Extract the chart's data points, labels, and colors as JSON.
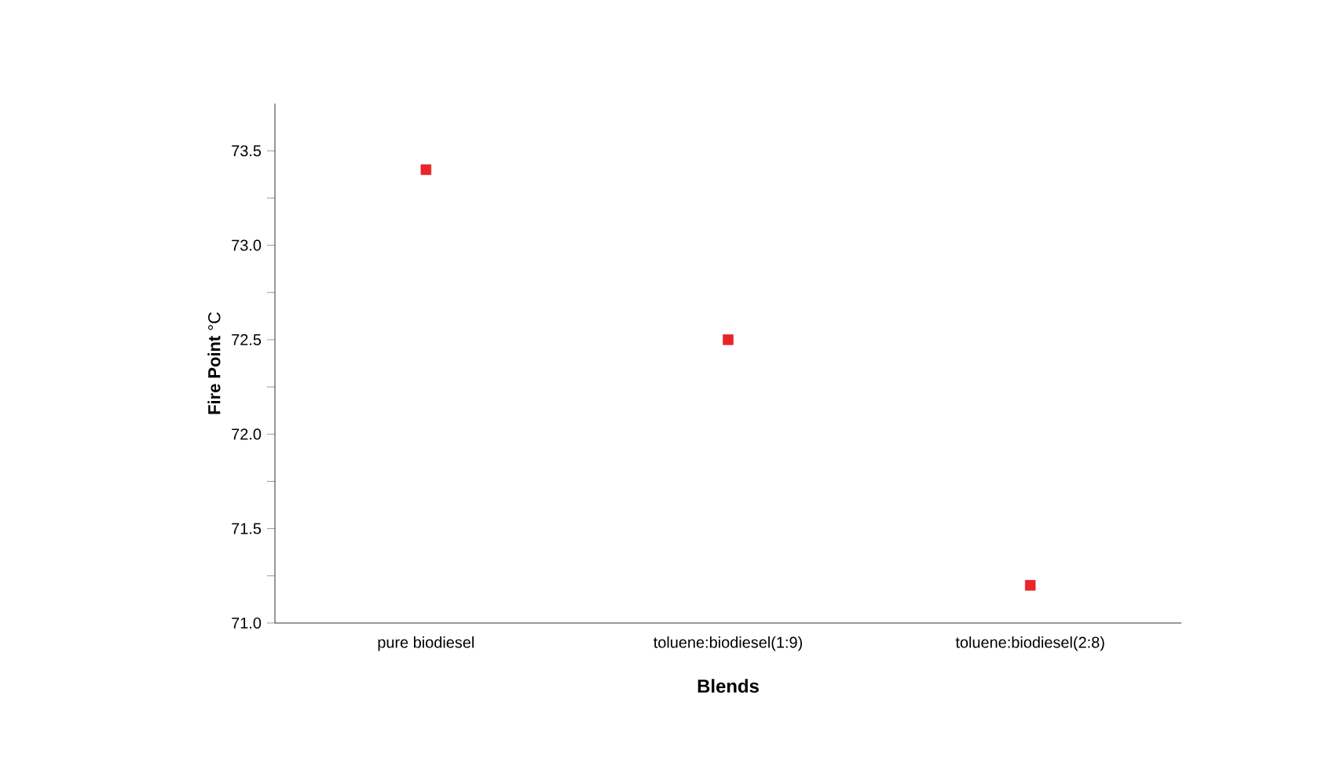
{
  "chart_data": {
    "type": "scatter",
    "xlabel": "Blends",
    "ylabel": "**Fire Point** °C",
    "categories": [
      "pure biodiesel",
      "toluene:biodiesel(1:9)",
      "toluene:biodiesel(2:8)"
    ],
    "series": [
      {
        "color": "#e8262a",
        "values": [
          73.4,
          72.5,
          71.2
        ]
      }
    ],
    "marker": "square",
    "ylim": [
      71.0,
      73.75
    ],
    "yticks": [
      {
        "value": 71.0,
        "label": "71.0"
      },
      {
        "value": 71.25,
        "label": null
      },
      {
        "value": 71.5,
        "label": "71.5"
      },
      {
        "value": 71.75,
        "label": null
      },
      {
        "value": 72.0,
        "label": "72.0"
      },
      {
        "value": 72.25,
        "label": null
      },
      {
        "value": 72.5,
        "label": "72.5"
      },
      {
        "value": 72.75,
        "label": null
      },
      {
        "value": 73.0,
        "label": "73.0"
      },
      {
        "value": 73.25,
        "label": null
      },
      {
        "value": 73.5,
        "label": "73.5"
      }
    ],
    "grid": false
  }
}
